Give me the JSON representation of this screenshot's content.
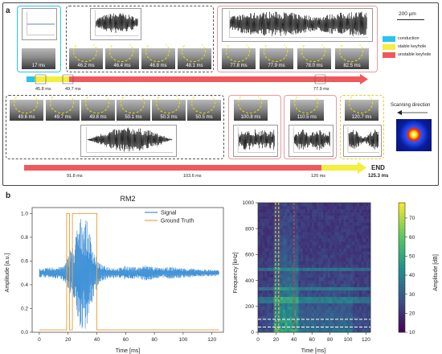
{
  "panel_a": {
    "label": "a",
    "scale_bar": "200 µm",
    "legend": [
      {
        "label": "conduction",
        "color": "#29c3ee"
      },
      {
        "label": "stable keyhole",
        "color": "#f3ef3d"
      },
      {
        "label": "unstable keyhole",
        "color": "#f0595b"
      }
    ],
    "row1": {
      "conduction_frame": "17 ms",
      "stable_frames": [
        "46.2 ms",
        "46.4 ms",
        "46.8 ms",
        "48.1 ms"
      ],
      "unstable_frames": [
        "77.8 ms",
        "77.9 ms",
        "78.0 ms",
        "82.5 ms"
      ],
      "timeline_marks": [
        "45.8 ms",
        "49.7 ms",
        "77.9 ms"
      ]
    },
    "row2": {
      "stable_frames": [
        "49.6 ms",
        "49.7 ms",
        "49.8 ms",
        "50.1 ms",
        "50.3 ms",
        "50.5 ms"
      ],
      "unstable_frames": [
        "100.8 ms",
        "110.5 ms",
        "120.7 ms"
      ],
      "timeline_marks": [
        "91.8 ms",
        "103.6 ms",
        "120 ms"
      ],
      "end_label": "END",
      "end_time": "125.3 ms",
      "scan_label": "Scanning direction"
    }
  },
  "panel_b": {
    "label": "b",
    "left": {
      "title": "RM2",
      "xlabel": "Time [ms]",
      "ylabel": "Amplitude [a.u.]",
      "xticks": [
        "0",
        "20",
        "40",
        "60",
        "80",
        "100",
        "120"
      ],
      "yticks": [
        "0.0",
        "0.2",
        "0.4",
        "0.6",
        "0.8",
        "1.0"
      ],
      "legend": [
        {
          "label": "Signal",
          "color": "#3b8fd6"
        },
        {
          "label": "Ground Truth",
          "color": "#f0a245"
        }
      ]
    },
    "right": {
      "xlabel": "Time [ms]",
      "ylabel": "Frequency [kHz]",
      "xticks": [
        "0",
        "20",
        "40",
        "60",
        "80",
        "100",
        "120"
      ],
      "yticks": [
        "0",
        "200",
        "400",
        "600",
        "800",
        "1000"
      ],
      "colorbar_label": "Amplitude [dB]",
      "colorbar_ticks": [
        "10",
        "20",
        "30",
        "40",
        "50",
        "60",
        "70"
      ]
    }
  },
  "chart_data": [
    {
      "type": "line",
      "title": "RM2",
      "xlabel": "Time [ms]",
      "ylabel": "Amplitude [a.u.]",
      "xlim": [
        -5,
        128
      ],
      "ylim": [
        0,
        1.05
      ],
      "series": [
        {
          "name": "Signal",
          "x": [
            0,
            5,
            10,
            15,
            18,
            20,
            22,
            24,
            26,
            28,
            30,
            32,
            34,
            36,
            38,
            40,
            42,
            45,
            50,
            55,
            60,
            65,
            70,
            75,
            80,
            85,
            90,
            95,
            100,
            105,
            110,
            115,
            120,
            125
          ],
          "y_center": 0.5,
          "envelope": [
            0.04,
            0.04,
            0.05,
            0.05,
            0.08,
            0.15,
            0.25,
            0.2,
            0.38,
            0.45,
            0.5,
            0.48,
            0.4,
            0.3,
            0.2,
            0.12,
            0.08,
            0.06,
            0.05,
            0.04,
            0.06,
            0.05,
            0.05,
            0.07,
            0.05,
            0.04,
            0.05,
            0.05,
            0.04,
            0.04,
            0.03,
            0.03,
            0.03,
            0.02
          ]
        },
        {
          "name": "Ground Truth",
          "x": [
            0,
            19,
            19,
            21,
            21,
            23,
            23,
            40,
            40,
            125
          ],
          "y": [
            0.02,
            0.02,
            1.0,
            1.0,
            0.02,
            0.02,
            1.0,
            1.0,
            0.02,
            0.02
          ]
        }
      ]
    },
    {
      "type": "heatmap",
      "xlabel": "Time [ms]",
      "ylabel": "Frequency [kHz]",
      "xlim": [
        0,
        125
      ],
      "ylim": [
        0,
        1000
      ],
      "colorbar": {
        "label": "Amplitude [dB]",
        "range": [
          10,
          78
        ]
      },
      "vertical_markers_ms": [
        {
          "x": 19.5,
          "color": "#f0b030"
        },
        {
          "x": 23,
          "color": "#f0b030"
        },
        {
          "x": 40,
          "color": "#d04040"
        }
      ],
      "horizontal_markers_khz": [
        40,
        100
      ]
    }
  ]
}
